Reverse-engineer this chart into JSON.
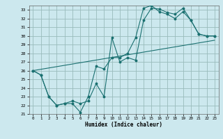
{
  "xlabel": "Humidex (Indice chaleur)",
  "background_color": "#cce8ee",
  "grid_color": "#99bbbb",
  "line_color": "#1a7070",
  "xlim": [
    -0.5,
    23.5
  ],
  "ylim": [
    21,
    33.5
  ],
  "yticks": [
    21,
    22,
    23,
    24,
    25,
    26,
    27,
    28,
    29,
    30,
    31,
    32,
    33
  ],
  "xticks": [
    0,
    1,
    2,
    3,
    4,
    5,
    6,
    7,
    8,
    9,
    10,
    11,
    12,
    13,
    14,
    15,
    16,
    17,
    18,
    19,
    20,
    21,
    22,
    23
  ],
  "line1_x": [
    0,
    1,
    2,
    3,
    4,
    5,
    6,
    7,
    8,
    9,
    10,
    11,
    12,
    13,
    14,
    15,
    16,
    17,
    18,
    19,
    20,
    21,
    22,
    23
  ],
  "line1_y": [
    26.0,
    25.5,
    23.0,
    22.0,
    22.2,
    22.5,
    22.2,
    22.5,
    24.5,
    23.0,
    29.8,
    27.0,
    27.5,
    27.2,
    31.8,
    33.2,
    33.1,
    32.7,
    32.5,
    33.2,
    31.8,
    30.2,
    30.0,
    30.0
  ],
  "line2_x": [
    0,
    1,
    2,
    3,
    4,
    5,
    6,
    7,
    8,
    9,
    10,
    11,
    12,
    13,
    14,
    15,
    16,
    17,
    18,
    19,
    20,
    21,
    22,
    23
  ],
  "line2_y": [
    26.0,
    25.5,
    23.0,
    22.0,
    22.2,
    22.2,
    21.2,
    23.0,
    26.5,
    26.2,
    27.5,
    27.5,
    28.0,
    29.8,
    33.2,
    33.5,
    32.8,
    32.5,
    32.0,
    32.8,
    31.8,
    30.2,
    30.0,
    30.0
  ],
  "line3_x": [
    0,
    23
  ],
  "line3_y": [
    26.0,
    29.5
  ]
}
